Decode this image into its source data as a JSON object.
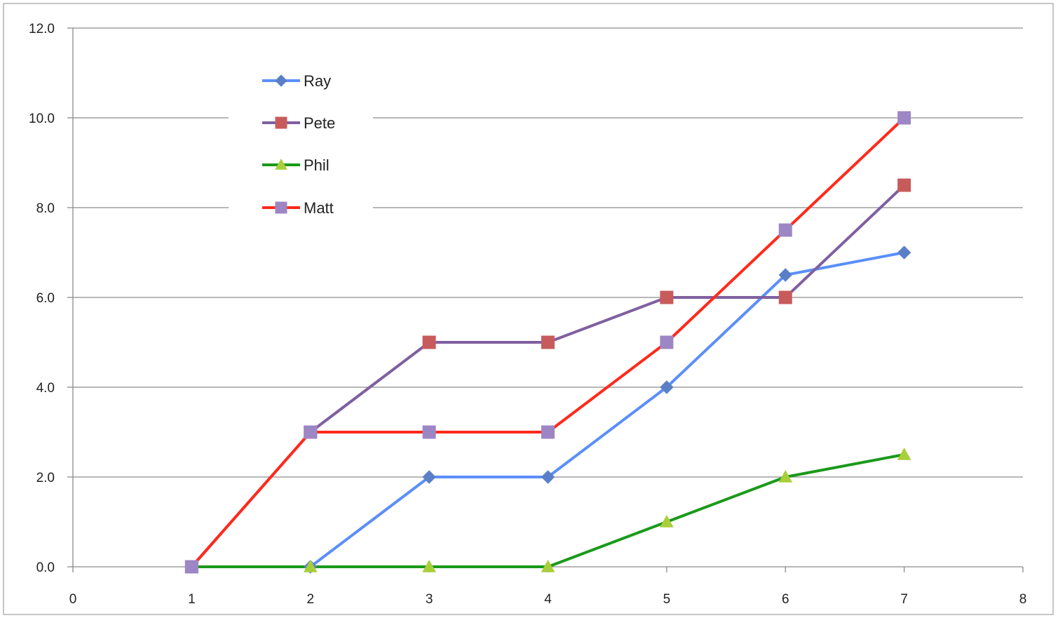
{
  "chart_data": {
    "type": "line",
    "title": "",
    "xlabel": "",
    "ylabel": "",
    "xlim": [
      0,
      8
    ],
    "ylim": [
      0,
      12
    ],
    "x_ticks": [
      "0",
      "1",
      "2",
      "3",
      "4",
      "5",
      "6",
      "7",
      "8"
    ],
    "y_ticks": [
      "0.0",
      "2.0",
      "4.0",
      "6.0",
      "8.0",
      "10.0",
      "12.0"
    ],
    "grid": "horizontal",
    "legend_position": "top-left",
    "x": [
      1,
      2,
      3,
      4,
      5,
      6,
      7
    ],
    "series": [
      {
        "name": "Ray",
        "values": [
          0,
          0,
          2,
          2,
          4,
          6.5,
          7
        ],
        "color": "#5b8ff9",
        "marker": "diamond",
        "marker_color": "#5b7fc7"
      },
      {
        "name": "Pete",
        "values": [
          0,
          3,
          5,
          5,
          6,
          6,
          8.5
        ],
        "color": "#7f5fa0",
        "marker": "square",
        "marker_color": "#c75b5b"
      },
      {
        "name": "Phil",
        "values": [
          0,
          0,
          0,
          0,
          1,
          2,
          2.5
        ],
        "color": "#1a9a1a",
        "marker": "triangle",
        "marker_color": "#a8cf3a"
      },
      {
        "name": "Matt",
        "values": [
          0,
          3,
          3,
          3,
          5,
          7.5,
          10
        ],
        "color": "#ff2a1a",
        "marker": "square",
        "marker_color": "#9d86c4"
      }
    ]
  }
}
